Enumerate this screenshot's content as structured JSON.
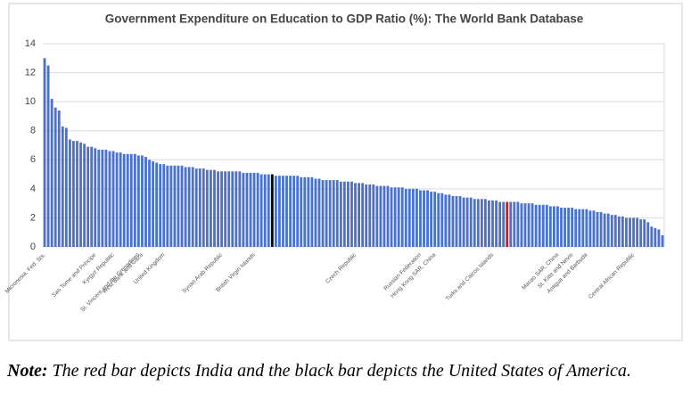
{
  "chart_data": {
    "type": "bar",
    "title": "Government Expenditure on Education to GDP Ratio (%): The World Bank Database",
    "categories": [
      "Micronesia, Fed. Sts.",
      null,
      null,
      null,
      null,
      null,
      null,
      null,
      null,
      null,
      null,
      null,
      null,
      null,
      "Sao Tome and Principe",
      null,
      null,
      null,
      null,
      "Kyrgyz Republic",
      null,
      null,
      null,
      null,
      null,
      null,
      "St. Vincent and the Grenadines",
      "West Bank and Gaza",
      null,
      null,
      null,
      null,
      null,
      "United Kingdom",
      null,
      null,
      null,
      null,
      null,
      null,
      null,
      null,
      null,
      null,
      null,
      null,
      null,
      null,
      null,
      "Syrian Arab Republic",
      null,
      null,
      null,
      null,
      null,
      null,
      null,
      null,
      "British Virgin Islands",
      null,
      null,
      null,
      null,
      null,
      null,
      null,
      null,
      null,
      null,
      null,
      null,
      null,
      null,
      null,
      null,
      null,
      null,
      null,
      null,
      null,
      null,
      null,
      null,
      null,
      null,
      null,
      "Czech Republic",
      null,
      null,
      null,
      null,
      null,
      null,
      null,
      null,
      null,
      null,
      null,
      null,
      null,
      null,
      null,
      null,
      null,
      "Russian Federation",
      null,
      null,
      null,
      "Hong Kong SAR, China",
      null,
      null,
      null,
      null,
      null,
      null,
      null,
      null,
      null,
      null,
      null,
      null,
      null,
      null,
      null,
      "Turks and Caicos Islands",
      null,
      null,
      null,
      null,
      null,
      null,
      null,
      null,
      null,
      null,
      null,
      null,
      null,
      null,
      null,
      null,
      null,
      "Macao SAR, China",
      null,
      null,
      null,
      "St. Kitts and Nevis",
      null,
      null,
      null,
      "Antigua and Barbuda",
      null,
      null,
      null,
      null,
      null,
      null,
      null,
      null,
      null,
      null,
      null,
      null,
      "Central African Republic",
      null,
      null,
      null,
      null,
      null,
      null,
      null,
      null
    ],
    "values": [
      13.0,
      12.5,
      10.2,
      9.6,
      9.4,
      8.3,
      8.2,
      7.4,
      7.3,
      7.3,
      7.2,
      7.1,
      6.9,
      6.9,
      6.8,
      6.7,
      6.7,
      6.7,
      6.6,
      6.6,
      6.5,
      6.5,
      6.4,
      6.4,
      6.4,
      6.4,
      6.3,
      6.3,
      6.2,
      6.0,
      5.9,
      5.8,
      5.7,
      5.7,
      5.6,
      5.6,
      5.6,
      5.6,
      5.6,
      5.5,
      5.5,
      5.5,
      5.4,
      5.4,
      5.4,
      5.3,
      5.3,
      5.3,
      5.2,
      5.2,
      5.2,
      5.2,
      5.2,
      5.2,
      5.2,
      5.1,
      5.1,
      5.1,
      5.1,
      5.1,
      5.0,
      5.0,
      5.0,
      5.0,
      4.9,
      4.9,
      4.9,
      4.9,
      4.9,
      4.9,
      4.9,
      4.8,
      4.8,
      4.8,
      4.8,
      4.7,
      4.7,
      4.6,
      4.6,
      4.6,
      4.6,
      4.6,
      4.5,
      4.5,
      4.5,
      4.5,
      4.4,
      4.4,
      4.4,
      4.3,
      4.3,
      4.3,
      4.2,
      4.2,
      4.2,
      4.2,
      4.1,
      4.1,
      4.1,
      4.1,
      4.0,
      4.0,
      4.0,
      4.0,
      3.9,
      3.9,
      3.9,
      3.8,
      3.8,
      3.7,
      3.7,
      3.6,
      3.6,
      3.5,
      3.5,
      3.5,
      3.4,
      3.4,
      3.4,
      3.3,
      3.3,
      3.3,
      3.3,
      3.2,
      3.2,
      3.2,
      3.1,
      3.1,
      3.1,
      3.1,
      3.1,
      3.1,
      3.0,
      3.0,
      3.0,
      3.0,
      2.9,
      2.9,
      2.9,
      2.9,
      2.8,
      2.8,
      2.8,
      2.7,
      2.7,
      2.7,
      2.7,
      2.6,
      2.6,
      2.6,
      2.6,
      2.5,
      2.5,
      2.4,
      2.4,
      2.3,
      2.3,
      2.2,
      2.2,
      2.1,
      2.1,
      2.0,
      2.0,
      2.0,
      2.0,
      1.9,
      1.9,
      1.7,
      1.4,
      1.3,
      1.2,
      0.8
    ],
    "color": "#4a72cc",
    "highlights": [
      {
        "index": 63,
        "color": "#000000"
      },
      {
        "index": 128,
        "color": "#e8111b"
      }
    ],
    "ylim": [
      0,
      14
    ],
    "yticks": [
      0,
      2,
      4,
      6,
      8,
      10,
      12,
      14
    ],
    "grid": true
  },
  "note": {
    "label": "Note:",
    "text": "The red bar depicts India and the black bar depicts the United States of America."
  }
}
